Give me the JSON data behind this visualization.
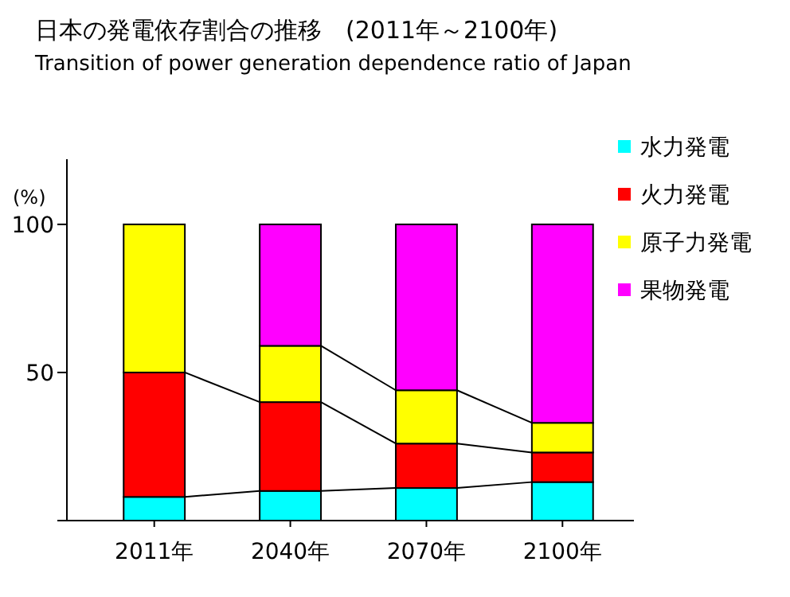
{
  "chart_data": {
    "type": "bar",
    "stacked": true,
    "title": "日本の発電依存割合の推移　(2011年～2100年)",
    "subtitle": "Transition of power generation dependence ratio of Japan",
    "ylabel": "(%)",
    "categories": [
      "2011年",
      "2040年",
      "2070年",
      "2100年"
    ],
    "series": [
      {
        "name": "水力発電",
        "color": "#00ffff",
        "values": [
          8,
          10,
          11,
          13
        ]
      },
      {
        "name": "火力発電",
        "color": "#ff0000",
        "values": [
          42,
          30,
          15,
          10
        ]
      },
      {
        "name": "原子力発電",
        "color": "#ffff00",
        "values": [
          50,
          19,
          18,
          10
        ]
      },
      {
        "name": "果物発電",
        "color": "#ff00ff",
        "values": [
          null,
          41,
          56,
          67
        ]
      }
    ],
    "ylim": [
      0,
      122
    ],
    "yticks": [
      {
        "value": 0,
        "label": null
      },
      50,
      100
    ],
    "legend": "right"
  }
}
